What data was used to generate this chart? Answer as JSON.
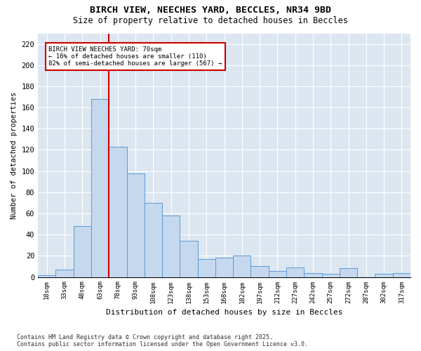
{
  "title1": "BIRCH VIEW, NEECHES YARD, BECCLES, NR34 9BD",
  "title2": "Size of property relative to detached houses in Beccles",
  "xlabel": "Distribution of detached houses by size in Beccles",
  "ylabel": "Number of detached properties",
  "footer": "Contains HM Land Registry data © Crown copyright and database right 2025.\nContains public sector information licensed under the Open Government Licence v3.0.",
  "annotation_line1": "BIRCH VIEW NEECHES YARD: 70sqm",
  "annotation_line2": "← 16% of detached houses are smaller (110)",
  "annotation_line3": "82% of semi-detached houses are larger (567) →",
  "bar_labels": [
    "18sqm",
    "33sqm",
    "48sqm",
    "63sqm",
    "78sqm",
    "93sqm",
    "108sqm",
    "123sqm",
    "138sqm",
    "153sqm",
    "168sqm",
    "182sqm",
    "197sqm",
    "212sqm",
    "227sqm",
    "242sqm",
    "257sqm",
    "272sqm",
    "287sqm",
    "302sqm",
    "317sqm"
  ],
  "bar_heights": [
    2,
    7,
    48,
    168,
    123,
    98,
    70,
    58,
    34,
    17,
    18,
    20,
    10,
    6,
    9,
    4,
    3,
    8,
    0,
    3,
    4
  ],
  "bar_color": "#c5d8ed",
  "bar_edge_color": "#5b9bd5",
  "vline_color": "#cc0000",
  "vline_x": 3.5,
  "annotation_box_color": "#cc0000",
  "background_color": "#dce6f1",
  "ylim": [
    0,
    230
  ],
  "yticks": [
    0,
    20,
    40,
    60,
    80,
    100,
    120,
    140,
    160,
    180,
    200,
    220
  ]
}
